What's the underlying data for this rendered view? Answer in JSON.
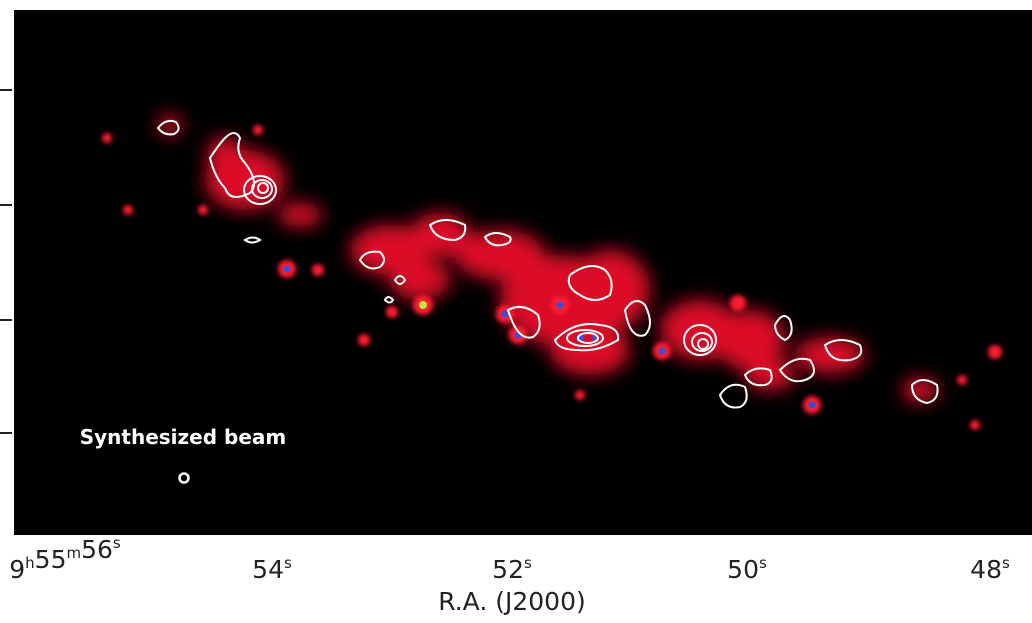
{
  "image": {
    "beam_label": "Synthesized beam",
    "x_axis": {
      "label": "R.A. (J2000)",
      "ticks": [
        [
          {
            "text": "9",
            "sup": "h"
          },
          {
            "text": "55",
            "sup": "m"
          },
          {
            "text": "56",
            "sup": "s"
          }
        ],
        [
          {
            "text": "54",
            "sup": "s"
          }
        ],
        [
          {
            "text": "52",
            "sup": "s"
          }
        ],
        [
          {
            "text": "50",
            "sup": "s"
          }
        ],
        [
          {
            "text": "48",
            "sup": "s"
          }
        ]
      ]
    }
  }
}
